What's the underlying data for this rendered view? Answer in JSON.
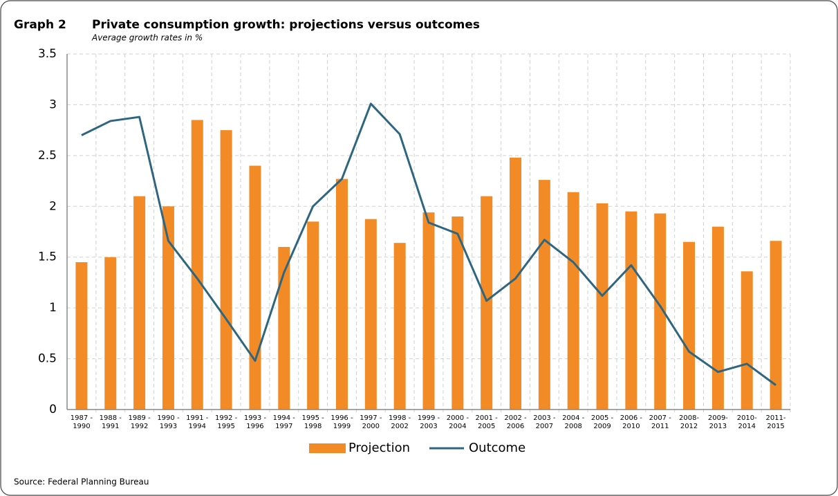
{
  "chart_data": {
    "type": "bar",
    "graph_label": "Graph 2",
    "title": "Private consumption growth: projections versus outcomes",
    "subtitle": "Average growth rates in %",
    "source": "Source: Federal Planning Bureau",
    "categories": [
      "1987 -\n1990",
      "1988 -\n1991",
      "1989 -\n1992",
      "1990 -\n1993",
      "1991 -\n1994",
      "1992 -\n1995",
      "1993 -\n1996",
      "1994 -\n1997",
      "1995 -\n1998",
      "1996 -\n1999",
      "1997 -\n2000",
      "1998 -\n2002",
      "1999 -\n2003",
      "2000 -\n2004",
      "2001 -\n2005",
      "2002 -\n2006",
      "2003 -\n2007",
      "2004 -\n2008",
      "2005 -\n2009",
      "2006 -\n2010",
      "2007 -\n2011",
      "2008-\n2012",
      "2009-\n2013",
      "2010-\n2014",
      "2011-\n2015"
    ],
    "series": [
      {
        "name": "Projection",
        "type": "bar",
        "color": "#f28a26",
        "values": [
          1.45,
          1.5,
          2.1,
          2.0,
          2.85,
          2.75,
          2.4,
          1.6,
          1.85,
          2.27,
          1.875,
          1.64,
          1.94,
          1.9,
          2.1,
          2.48,
          2.26,
          2.14,
          2.03,
          1.95,
          1.93,
          1.65,
          1.8,
          1.36,
          1.66
        ]
      },
      {
        "name": "Outcome",
        "type": "line",
        "color": "#2e6680",
        "values": [
          2.7,
          2.84,
          2.88,
          1.66,
          1.29,
          0.89,
          0.48,
          1.35,
          2.0,
          2.27,
          3.01,
          2.71,
          1.84,
          1.73,
          1.07,
          1.29,
          1.67,
          1.45,
          1.12,
          1.42,
          1.02,
          0.57,
          0.37,
          0.45,
          0.24
        ]
      }
    ],
    "ylim": [
      0,
      3.5
    ],
    "yticks": [
      0,
      0.5,
      1,
      1.5,
      2,
      2.5,
      3,
      3.5
    ],
    "grid": true,
    "legend": "bottom"
  }
}
